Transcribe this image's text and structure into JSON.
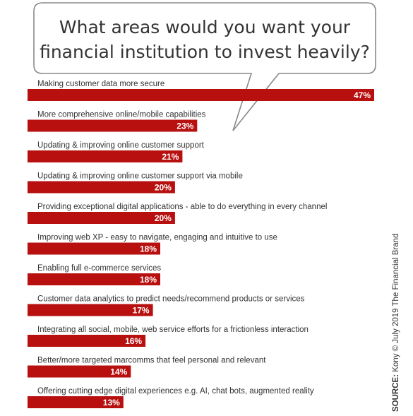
{
  "question": {
    "line1": "What areas would you want your",
    "line2": "financial institution to invest heavily?"
  },
  "source": {
    "label": "SOURCE:",
    "text": "Kony © July 2019 The Financial Brand"
  },
  "colors": {
    "bar": "#b80f0f",
    "bar_text": "#ffffff",
    "label_text": "#333333",
    "bubble_stroke": "#888888"
  },
  "chart_data": {
    "type": "bar",
    "orientation": "horizontal",
    "value_suffix": "%",
    "categories": [
      "Making customer data more secure",
      "More comprehensive online/mobile capabilities",
      "Updating & improving online customer support",
      "Updating & improving online customer support via mobile",
      "Providing exceptional digital applications - able to do everything in every channel",
      "Improving web XP - easy to navigate, engaging and intuitive to use",
      "Enabling full e-commerce services",
      "Customer data analytics to predict needs/recommend products or services",
      "Integrating all social, mobile, web service efforts for a frictionless interaction",
      "Better/more targeted marcomms that feel personal and relevant",
      "Offering cutting edge digital experiences e.g. AI, chat bots, augmented reality"
    ],
    "values": [
      47,
      23,
      21,
      20,
      20,
      18,
      18,
      17,
      16,
      14,
      13
    ],
    "data_labels": [
      "47%",
      "23%",
      "21%",
      "20%",
      "20%",
      "18%",
      "18%",
      "17%",
      "16%",
      "14%",
      "13%"
    ],
    "xlim": [
      0,
      47
    ],
    "grid": false,
    "legend": "none"
  }
}
